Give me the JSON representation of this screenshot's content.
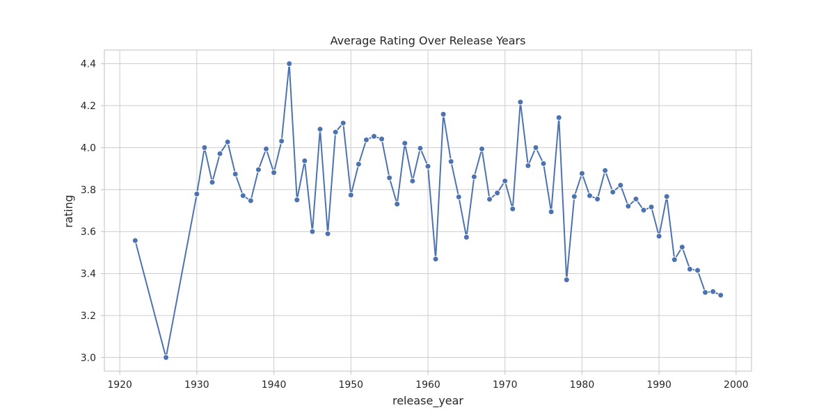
{
  "chart_data": {
    "type": "line",
    "title": "Average Rating Over Release Years",
    "xlabel": "release_year",
    "ylabel": "rating",
    "xlim": [
      1918,
      2002
    ],
    "ylim": [
      2.935,
      4.465
    ],
    "xticks": [
      1920,
      1930,
      1940,
      1950,
      1960,
      1970,
      1980,
      1990,
      2000
    ],
    "yticks": [
      3.0,
      3.2,
      3.4,
      3.6,
      3.8,
      4.0,
      4.2,
      4.4
    ],
    "xtick_labels": [
      "1920",
      "1930",
      "1940",
      "1950",
      "1960",
      "1970",
      "1980",
      "1990",
      "2000"
    ],
    "ytick_labels": [
      "3.0",
      "3.2",
      "3.4",
      "3.6",
      "3.8",
      "4.0",
      "4.2",
      "4.4"
    ],
    "grid": true,
    "color": "#4c72b0",
    "series": [
      {
        "x": [
          1922,
          1926,
          1930,
          1931,
          1932,
          1933,
          1934,
          1935,
          1936,
          1937,
          1938,
          1939,
          1940,
          1941,
          1942,
          1943,
          1944,
          1945,
          1946,
          1947,
          1948,
          1949,
          1950,
          1951,
          1952,
          1953,
          1954,
          1955,
          1956,
          1957,
          1958,
          1959,
          1960,
          1961,
          1962,
          1963,
          1964,
          1965,
          1966,
          1967,
          1968,
          1969,
          1970,
          1971,
          1972,
          1973,
          1974,
          1975,
          1976,
          1977,
          1978,
          1979,
          1980,
          1981,
          1982,
          1983,
          1984,
          1985,
          1986,
          1987,
          1988,
          1989,
          1990,
          1991,
          1992,
          1993,
          1994,
          1995,
          1996,
          1997,
          1998
        ],
        "y": [
          3.557,
          3.0,
          3.779,
          4.0,
          3.835,
          3.971,
          4.027,
          3.874,
          3.771,
          3.747,
          3.895,
          3.994,
          3.881,
          4.031,
          4.4,
          3.751,
          3.937,
          3.6,
          4.088,
          3.59,
          4.074,
          4.117,
          3.774,
          3.921,
          4.037,
          4.054,
          4.041,
          3.856,
          3.731,
          4.021,
          3.841,
          3.997,
          3.911,
          3.469,
          4.159,
          3.934,
          3.765,
          3.573,
          3.861,
          3.994,
          3.754,
          3.784,
          3.841,
          3.708,
          4.217,
          3.914,
          4.0,
          3.924,
          3.694,
          4.143,
          3.37,
          3.767,
          3.877,
          3.771,
          3.755,
          3.891,
          3.788,
          3.821,
          3.721,
          3.755,
          3.702,
          3.717,
          3.578,
          3.767,
          3.466,
          3.526,
          3.421,
          3.415,
          3.31,
          3.314,
          3.297
        ]
      }
    ]
  }
}
